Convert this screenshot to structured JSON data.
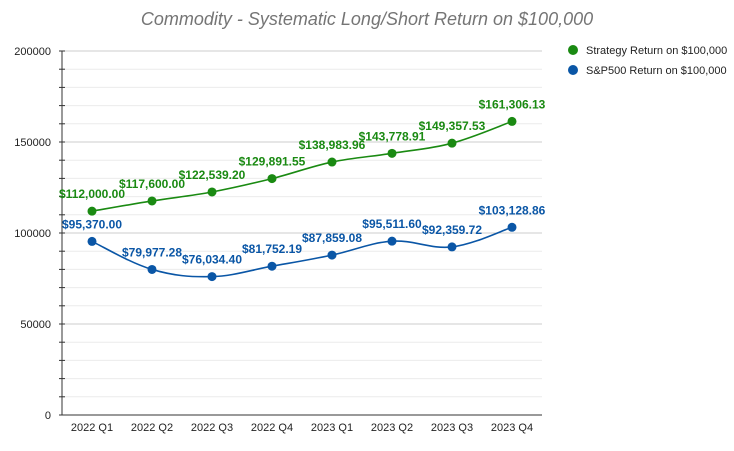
{
  "chart_data": {
    "type": "line",
    "title": "Commodity - Systematic Long/Short Return on $100,000",
    "xlabel": "",
    "ylabel": "",
    "categories": [
      "2022 Q1",
      "2022 Q2",
      "2022 Q3",
      "2022 Q4",
      "2023 Q1",
      "2023 Q2",
      "2023 Q3",
      "2023 Q4"
    ],
    "ylim": [
      0,
      200000
    ],
    "yticks": [
      0,
      50000,
      100000,
      150000,
      200000
    ],
    "grid": true,
    "legend_position": "top-right",
    "series": [
      {
        "name": "Strategy Return on $100,000",
        "color": "#1a8a12",
        "values": [
          112000.0,
          117600.0,
          122539.2,
          129891.55,
          138983.96,
          143778.91,
          149357.53,
          161306.13
        ],
        "labels": [
          "$112,000.00",
          "$117,600.00",
          "$122,539.20",
          "$129,891.55",
          "$138,983.96",
          "$143,778.91",
          "$149,357.53",
          "$161,306.13"
        ]
      },
      {
        "name": "S&P500 Return on $100,000",
        "color": "#0a56a6",
        "values": [
          95370.0,
          79977.28,
          76034.4,
          81752.19,
          87859.08,
          95511.6,
          92359.72,
          103128.86
        ],
        "labels": [
          "$95,370.00",
          "$79,977.28",
          "$76,034.40",
          "$81,752.19",
          "$87,859.08",
          "$95,511.60",
          "$92,359.72",
          "$103,128.86"
        ]
      }
    ]
  }
}
